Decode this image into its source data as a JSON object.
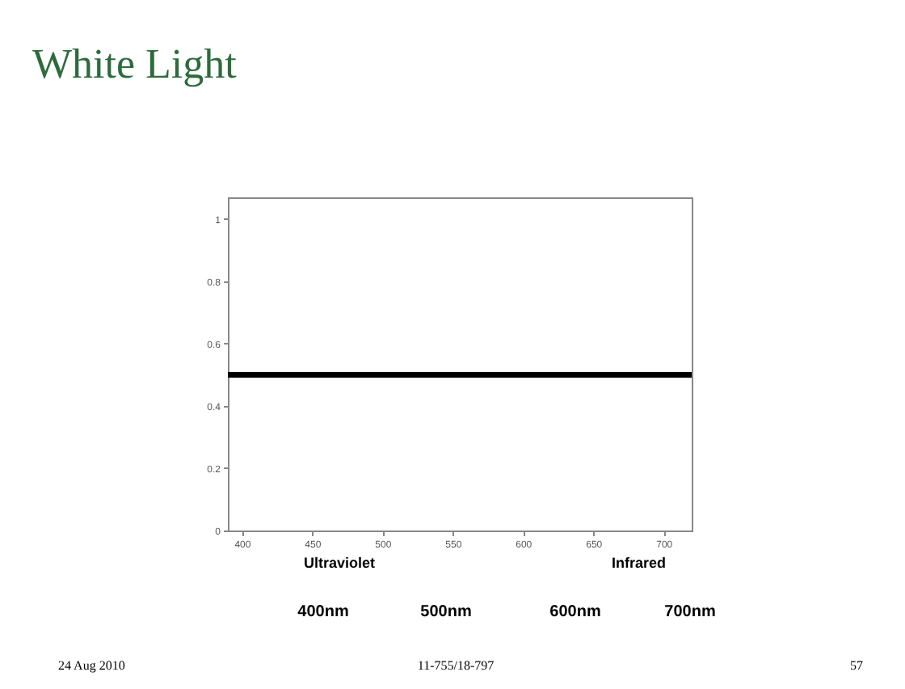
{
  "chart_data": {
    "type": "line",
    "title": "White Light",
    "series": [
      {
        "color": "#000000",
        "x": [
          390,
          720
        ],
        "values": [
          0.5,
          0.5
        ]
      }
    ],
    "xlim": [
      390,
      720
    ],
    "xticks": [
      400,
      450,
      500,
      550,
      600,
      650,
      700
    ],
    "ylim": [
      0,
      1.07
    ],
    "yticks": [
      0,
      0.2,
      0.4,
      0.6,
      0.8,
      1
    ],
    "grid": false,
    "marker": "none",
    "line_style": "solid",
    "annotations": [
      "Ultraviolet",
      "Infrared",
      "400nm",
      "500nm",
      "600nm",
      "700nm",
      "24 Aug 2010",
      "11-755/18-797",
      "57"
    ]
  }
}
